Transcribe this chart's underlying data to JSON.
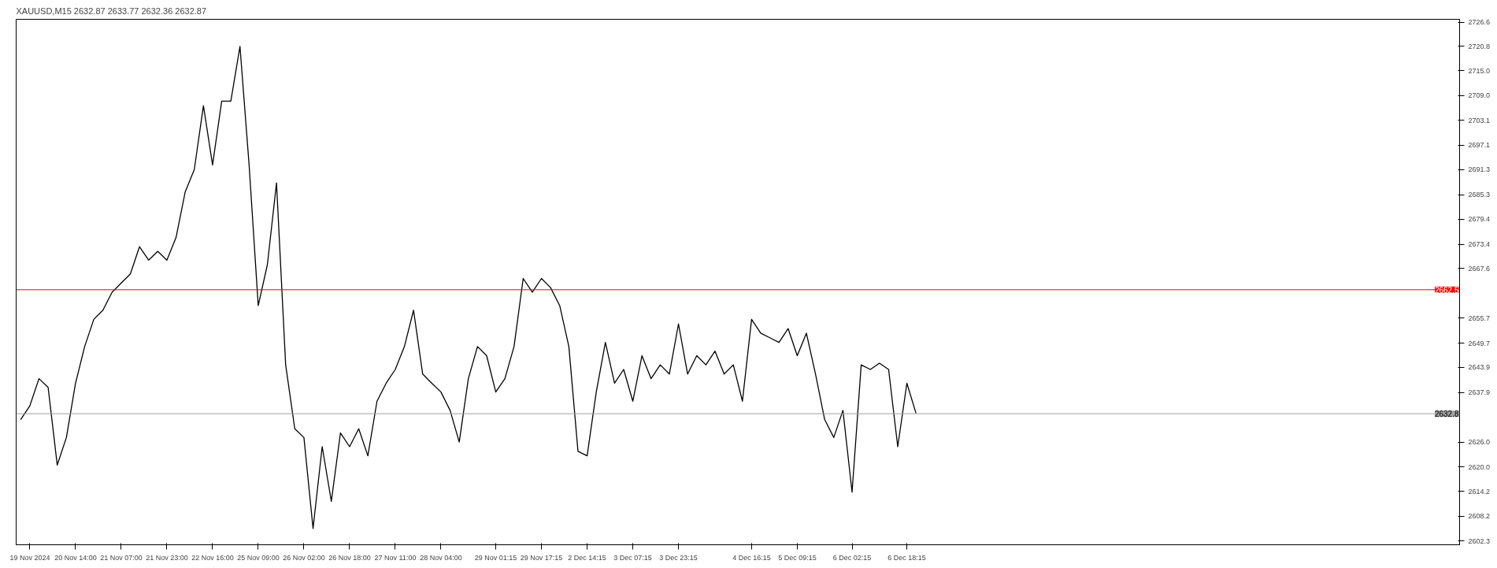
{
  "chart_data": {
    "type": "line",
    "title": "XAUUSD,M15  2632.87 2633.77 2632.36 2632.87",
    "categories": [
      null,
      "19 Nov 2024",
      null,
      null,
      null,
      null,
      "20 Nov 14:00",
      null,
      null,
      null,
      null,
      "21 Nov 07:00",
      null,
      null,
      null,
      null,
      "21 Nov 23:00",
      null,
      null,
      null,
      null,
      "22 Nov 16:00",
      null,
      null,
      null,
      null,
      "25 Nov 09:00",
      null,
      null,
      null,
      null,
      "26 Nov 02:00",
      null,
      null,
      null,
      null,
      "26 Nov 18:00",
      null,
      null,
      null,
      null,
      "27 Nov 11:00",
      null,
      null,
      null,
      null,
      "28 Nov 04:00",
      null,
      null,
      null,
      null,
      null,
      "29 Nov 01:15",
      null,
      null,
      null,
      null,
      "29 Nov 17:15",
      null,
      null,
      null,
      null,
      "2 Dec 14:15",
      null,
      null,
      null,
      null,
      "3 Dec 07:15",
      null,
      null,
      null,
      null,
      "3 Dec 23:15",
      null,
      null,
      null,
      null,
      null,
      null,
      null,
      "4 Dec 16:15",
      null,
      null,
      null,
      null,
      "5 Dec 09:15",
      null,
      null,
      null,
      null,
      null,
      "6 Dec 02:15",
      null,
      null,
      null,
      null,
      null,
      "6 Dec 18:15",
      null,
      null,
      null,
      null,
      null,
      null,
      null,
      null,
      null,
      null,
      null,
      null,
      null,
      null,
      null,
      null,
      null,
      null,
      null,
      null,
      null,
      null,
      null,
      null,
      null,
      null,
      null,
      null,
      null,
      null,
      null,
      null,
      null,
      null,
      null,
      null,
      null,
      null,
      null,
      null,
      null,
      null,
      null,
      null,
      null,
      null,
      null,
      null,
      null,
      null,
      null,
      null,
      null,
      null,
      null,
      null,
      null,
      null,
      null,
      null
    ],
    "series": [
      {
        "color": "#000000",
        "values": [
          2631.4,
          2634.7,
          2641.2,
          2639.1,
          2620.5,
          2627.1,
          2640.1,
          2648.9,
          2655.4,
          2657.6,
          2661.9,
          2664.1,
          2666.3,
          2672.8,
          2669.6,
          2671.7,
          2669.6,
          2675.0,
          2685.9,
          2691.3,
          2706.6,
          2692.4,
          2707.7,
          2707.7,
          2720.8,
          2692.4,
          2658.7,
          2668.5,
          2688.1,
          2644.5,
          2629.2,
          2627.1,
          2605.3,
          2624.9,
          2611.8,
          2628.2,
          2624.9,
          2629.2,
          2622.7,
          2635.8,
          2640.1,
          2643.4,
          2648.9,
          2657.6,
          2642.3,
          2640.1,
          2638.0,
          2633.6,
          2626.0,
          2641.2,
          2648.9,
          2646.7,
          2638.0,
          2641.2,
          2648.9,
          2665.2,
          2661.9,
          2665.2,
          2663.0,
          2658.7,
          2648.9,
          2623.8,
          2622.7,
          2638.0,
          2649.9,
          2640.1,
          2643.4,
          2635.8,
          2646.7,
          2641.2,
          2644.5,
          2642.3,
          2654.3,
          2642.3,
          2646.7,
          2644.5,
          2647.8,
          2642.3,
          2644.5,
          2635.8,
          2655.4,
          2652.1,
          2651.0,
          2649.9,
          2653.2,
          2646.7,
          2652.1,
          2642.3,
          2631.4,
          2627.1,
          2633.6,
          2614.0,
          2644.5,
          2643.4,
          2644.9,
          2643.4,
          2624.9,
          2640.1,
          2632.9,
          null,
          null,
          null,
          null,
          null,
          null,
          null,
          null,
          null,
          null,
          null,
          null,
          null,
          null,
          null,
          null,
          null,
          null,
          null,
          null,
          null,
          null,
          null,
          null,
          null,
          null,
          null,
          null,
          null,
          null,
          null,
          null,
          null,
          null,
          null,
          null,
          null,
          null,
          null,
          null,
          null,
          null,
          null,
          null,
          null,
          null,
          null,
          null,
          null,
          null,
          null,
          null,
          null,
          null,
          null,
          null,
          null,
          null,
          null
        ]
      }
    ],
    "ylim": [
      2601.4,
      2727.3
    ],
    "yticks": [
      2602.3,
      2608.2,
      2614.2,
      {
        "value": 2620,
        "label": "2620.0"
      },
      {
        "value": 2626,
        "label": "2626.0"
      },
      2637.9,
      2643.9,
      2649.7,
      2655.7,
      2667.6,
      2673.4,
      2679.4,
      2685.3,
      2691.3,
      2697.1,
      2703.1,
      {
        "value": 2709,
        "label": "2709.0"
      },
      {
        "value": 2715,
        "label": "2715.0"
      },
      2720.8,
      2726.6
    ],
    "ref_lines": [
      {
        "axis": "y",
        "value": 2662.5,
        "label": "2662.5",
        "color": "#ff0000"
      },
      {
        "axis": "y",
        "value": 2632.8,
        "label": "2632.8",
        "color": "#a0a0a0"
      }
    ],
    "grid": false
  }
}
